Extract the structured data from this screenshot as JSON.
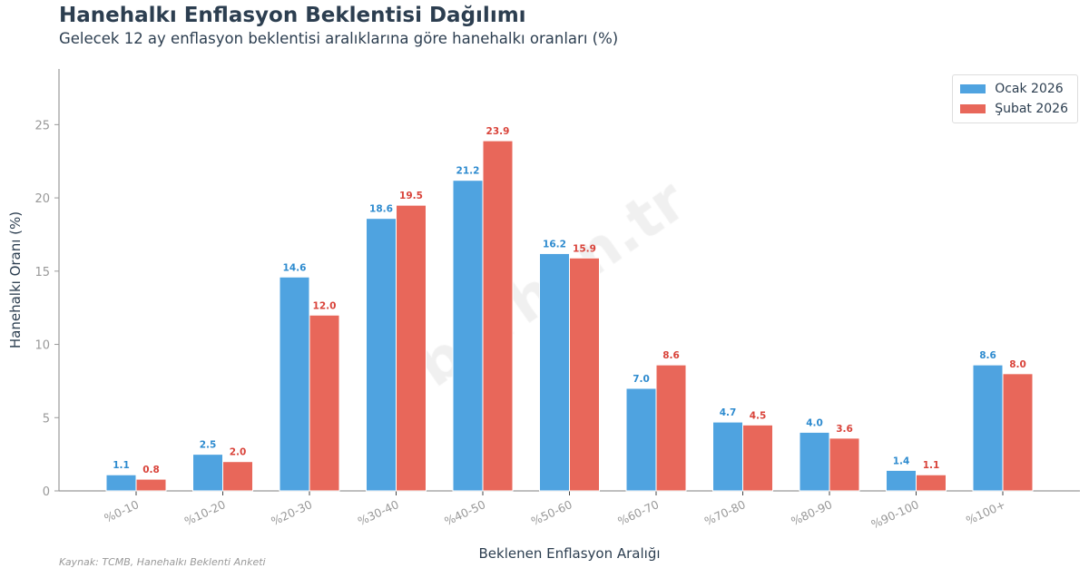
{
  "title": "Hanehalkı Enflasyon Beklentisi Dağılımı",
  "subtitle": "Gelecek 12 ay enflasyon beklentisi aralıklarına göre hanehalkı oranları (%)",
  "source": "Kaynak: TCMB, Hanehalkı Beklenti Anketi",
  "watermark": "borhon.tr",
  "chart_data": {
    "type": "bar",
    "xlabel": "Beklenen Enflasyon Aralığı",
    "ylabel": "Hanehalkı Oranı (%)",
    "ylim": [
      0,
      28.8
    ],
    "yticks": [
      0,
      5,
      10,
      15,
      20,
      25
    ],
    "grid": false,
    "legend_position": "top-right",
    "categories": [
      "%0-10",
      "%10-20",
      "%20-30",
      "%30-40",
      "%40-50",
      "%50-60",
      "%60-70",
      "%70-80",
      "%80-90",
      "%90-100",
      "%100+"
    ],
    "series": [
      {
        "name": "Ocak 2026",
        "color": "#4fa3e0",
        "label_color": "#2e8bcf",
        "values": [
          1.1,
          2.5,
          14.6,
          18.6,
          21.2,
          16.2,
          7.0,
          4.7,
          4.0,
          1.4,
          8.6
        ]
      },
      {
        "name": "Şubat 2026",
        "color": "#e8675a",
        "label_color": "#d9433a",
        "values": [
          0.8,
          2.0,
          12.0,
          19.5,
          23.9,
          15.9,
          8.6,
          4.5,
          3.6,
          1.1,
          8.0
        ]
      }
    ]
  }
}
